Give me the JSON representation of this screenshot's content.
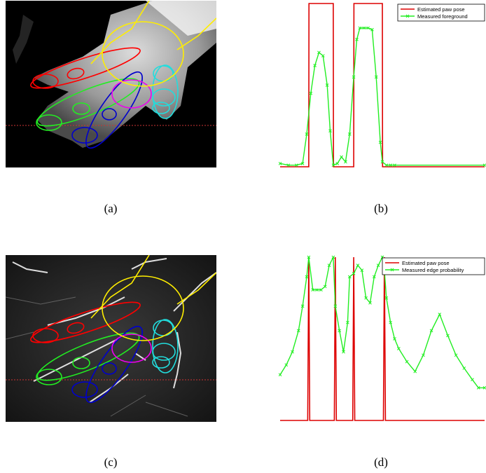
{
  "captions": {
    "a": "(a)",
    "b": "(b)",
    "c": "(c)",
    "d": "(d)"
  },
  "colors": {
    "estimated": "#dd0000",
    "measured": "#22ee22",
    "red_ellipse": "#ff0000",
    "green_ellipse": "#22ee22",
    "blue_ellipse": "#0000cc",
    "magenta_ellipse": "#ee00ee",
    "cyan_ellipse": "#22dddd",
    "yellow_ellipse": "#ffee00",
    "scanline": "#cc3333"
  },
  "chart_data": [
    {
      "id": "b",
      "type": "line",
      "xlim": [
        0,
        100
      ],
      "ylim": [
        0,
        1
      ],
      "grid": false,
      "legend_position": "top-right",
      "series": [
        {
          "name": "Estimated paw pose",
          "x": [
            0,
            14,
            14.1,
            26,
            26.1,
            36,
            36.1,
            50,
            50.1,
            100
          ],
          "y": [
            0,
            0,
            1,
            1,
            0,
            0,
            1,
            1,
            0,
            0
          ]
        },
        {
          "name": "Measured foreground",
          "x": [
            0,
            4,
            8,
            11,
            13,
            15,
            17,
            19,
            21,
            23,
            24.5,
            26,
            28,
            30,
            32,
            34,
            36,
            37.5,
            39,
            41,
            43,
            45,
            47,
            49,
            50,
            52,
            54,
            56,
            100
          ],
          "y": [
            0.02,
            0.01,
            0.01,
            0.02,
            0.2,
            0.45,
            0.62,
            0.7,
            0.68,
            0.5,
            0.22,
            0.01,
            0.02,
            0.06,
            0.03,
            0.2,
            0.55,
            0.78,
            0.85,
            0.85,
            0.85,
            0.84,
            0.55,
            0.15,
            0.03,
            0.01,
            0.01,
            0.01,
            0.01
          ]
        }
      ]
    },
    {
      "id": "d",
      "type": "line",
      "xlim": [
        0,
        100
      ],
      "ylim": [
        0,
        1
      ],
      "grid": false,
      "legend_position": "top-right",
      "series": [
        {
          "name": "Estimated paw pose",
          "x": [
            0,
            13.5,
            14,
            14.5,
            26.5,
            27,
            27.5,
            35.5,
            36,
            36.5,
            50.5,
            51,
            51.5,
            100
          ],
          "y": [
            0,
            0,
            1,
            0,
            0,
            1,
            0,
            0,
            1,
            0,
            0,
            1,
            0,
            0
          ]
        },
        {
          "name": "Measured edge probability",
          "x": [
            0,
            3,
            6,
            9,
            11,
            13,
            14,
            16,
            18,
            20,
            22,
            24,
            26,
            27,
            29,
            31,
            33,
            34,
            36,
            38,
            40,
            42,
            44,
            46,
            48,
            50,
            51,
            52,
            54,
            56,
            58,
            62,
            66,
            70,
            74,
            78,
            82,
            86,
            90,
            94,
            97,
            100
          ],
          "y": [
            0.28,
            0.34,
            0.42,
            0.55,
            0.7,
            0.88,
            1.0,
            0.8,
            0.8,
            0.8,
            0.82,
            0.95,
            1.0,
            0.7,
            0.55,
            0.42,
            0.6,
            0.88,
            0.9,
            0.95,
            0.92,
            0.75,
            0.72,
            0.88,
            0.95,
            1.0,
            0.92,
            0.75,
            0.6,
            0.5,
            0.44,
            0.36,
            0.3,
            0.4,
            0.55,
            0.65,
            0.52,
            0.4,
            0.32,
            0.25,
            0.2,
            0.2
          ]
        }
      ]
    }
  ]
}
